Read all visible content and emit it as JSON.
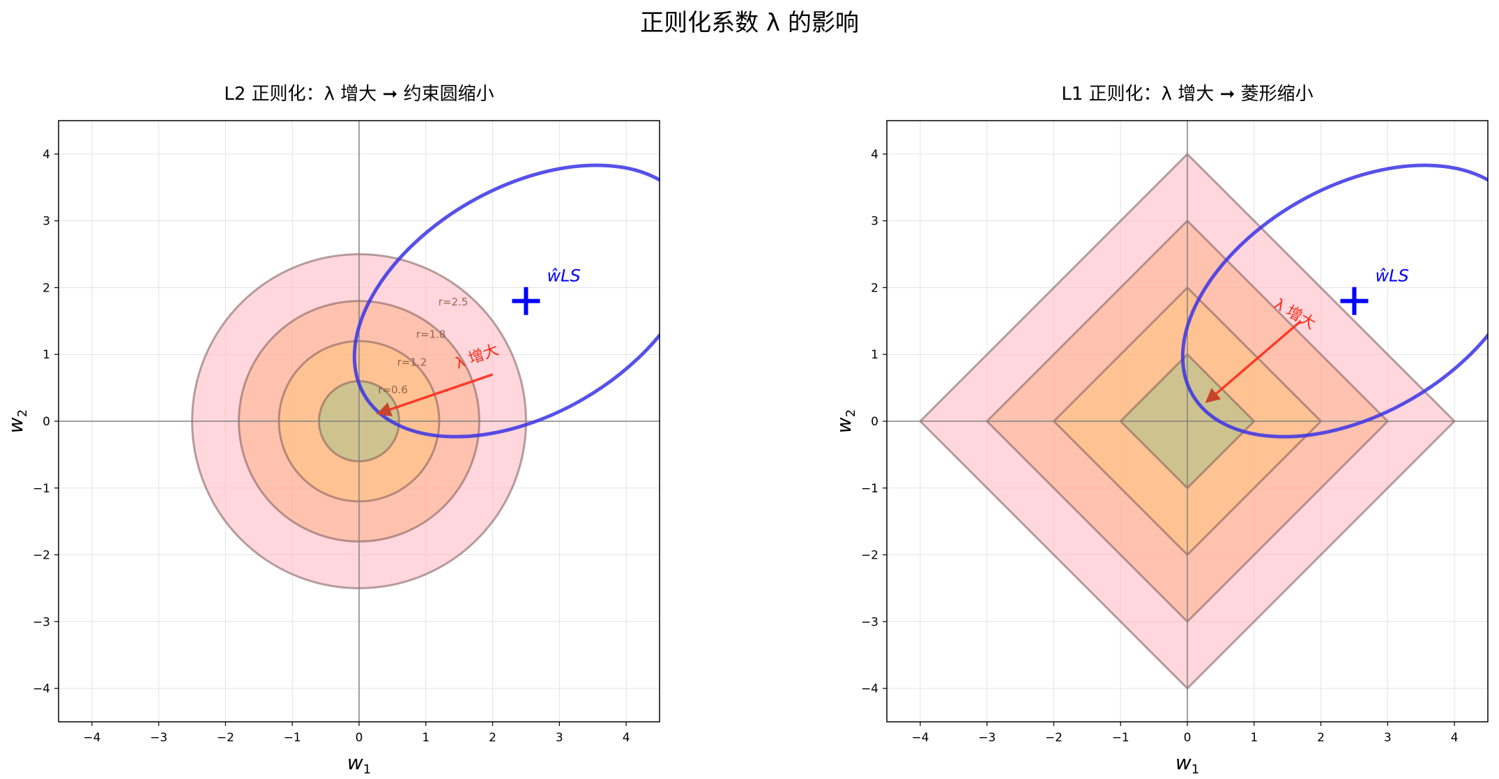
{
  "title": "正则化系数 λ 的影响",
  "chart_data": [
    {
      "type": "line",
      "title": "L2 正则化：λ 增大 ➞ 约束圆缩小",
      "xlabel": "w1",
      "ylabel": "w2",
      "xlim": [
        -4.5,
        4.5
      ],
      "ylim": [
        -4.5,
        4.5
      ],
      "xticks": [
        -4,
        -3,
        -2,
        -1,
        0,
        1,
        2,
        3,
        4
      ],
      "yticks": [
        -4,
        -3,
        -2,
        -1,
        0,
        1,
        2,
        3,
        4
      ],
      "grid": true,
      "constraint_shape": "circle",
      "radii": [
        2.5,
        1.8,
        1.2,
        0.6
      ],
      "radius_labels": [
        "r=2.5",
        "r=1.8",
        "r=1.2",
        "r=0.6"
      ],
      "fill_colors": [
        "#ffb6bf",
        "#ffb08a",
        "#ffc27a",
        "#a6c48c"
      ],
      "ls_estimate": {
        "label": "ŵLS",
        "x": 2.5,
        "y": 1.8,
        "color": "#0000ff"
      },
      "contour_ellipse": {
        "cx": 2.5,
        "cy": 1.8,
        "rx": 2.8,
        "ry": 1.7,
        "angle_deg": 30,
        "color": "#3a32e6"
      },
      "arrow": {
        "from": [
          2.0,
          0.7
        ],
        "to": [
          0.3,
          0.12
        ],
        "color": "#ff2a1a"
      },
      "arrow_label": "λ 增大"
    },
    {
      "type": "line",
      "title": "L1 正则化：λ 增大 ➞ 菱形缩小",
      "xlabel": "w1",
      "ylabel": "w2",
      "xlim": [
        -4.5,
        4.5
      ],
      "ylim": [
        -4.5,
        4.5
      ],
      "xticks": [
        -4,
        -3,
        -2,
        -1,
        0,
        1,
        2,
        3,
        4
      ],
      "yticks": [
        -4,
        -3,
        -2,
        -1,
        0,
        1,
        2,
        3,
        4
      ],
      "grid": true,
      "constraint_shape": "diamond",
      "radii": [
        4,
        3,
        2,
        1
      ],
      "fill_colors": [
        "#ffb6bf",
        "#ffb08a",
        "#ffc27a",
        "#a6c48c"
      ],
      "ls_estimate": {
        "label": "ŵLS",
        "x": 2.5,
        "y": 1.8,
        "color": "#0000ff"
      },
      "contour_ellipse": {
        "cx": 2.5,
        "cy": 1.8,
        "rx": 2.8,
        "ry": 1.7,
        "angle_deg": 30,
        "color": "#3a32e6"
      },
      "arrow": {
        "from": [
          1.7,
          1.5
        ],
        "to": [
          0.3,
          0.3
        ],
        "color": "#ff2a1a"
      },
      "arrow_label": "λ 增大"
    }
  ]
}
